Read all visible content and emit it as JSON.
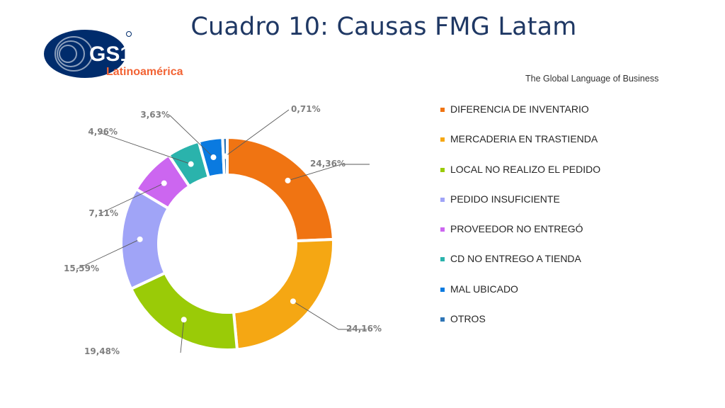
{
  "header": {
    "title": "Cuadro 10: Causas FMG Latam",
    "logo_text": "GS1",
    "logo_subtitle": "Latinoamérica",
    "tagline": "The Global Language of Business"
  },
  "colors": {
    "title": "#1f3864",
    "logo_blue": "#002c6c",
    "logo_orange": "#f26334"
  },
  "chart_data": {
    "type": "pie",
    "style": "donut",
    "categories": [
      "DIFERENCIA DE INVENTARIO",
      "MERCADERIA EN TRASTIENDA",
      "LOCAL NO REALIZO EL PEDIDO",
      "PEDIDO INSUFICIENTE",
      "PROVEEDOR NO ENTREGÓ",
      "CD NO ENTREGO A TIENDA",
      "MAL UBICADO",
      "OTROS"
    ],
    "values": [
      24.36,
      24.16,
      19.48,
      15.59,
      7.11,
      4.96,
      3.63,
      0.71
    ],
    "value_labels": [
      "24,36%",
      "24,16%",
      "19,48%",
      "15,59%",
      "7,11%",
      "4,96%",
      "3,63%",
      "0,71%"
    ],
    "colors": [
      "#f07412",
      "#f5a713",
      "#9acb07",
      "#a0a4f7",
      "#cc66f0",
      "#2ab3ac",
      "#0a7ae0",
      "#2e75b6"
    ],
    "legend_position": "right"
  }
}
